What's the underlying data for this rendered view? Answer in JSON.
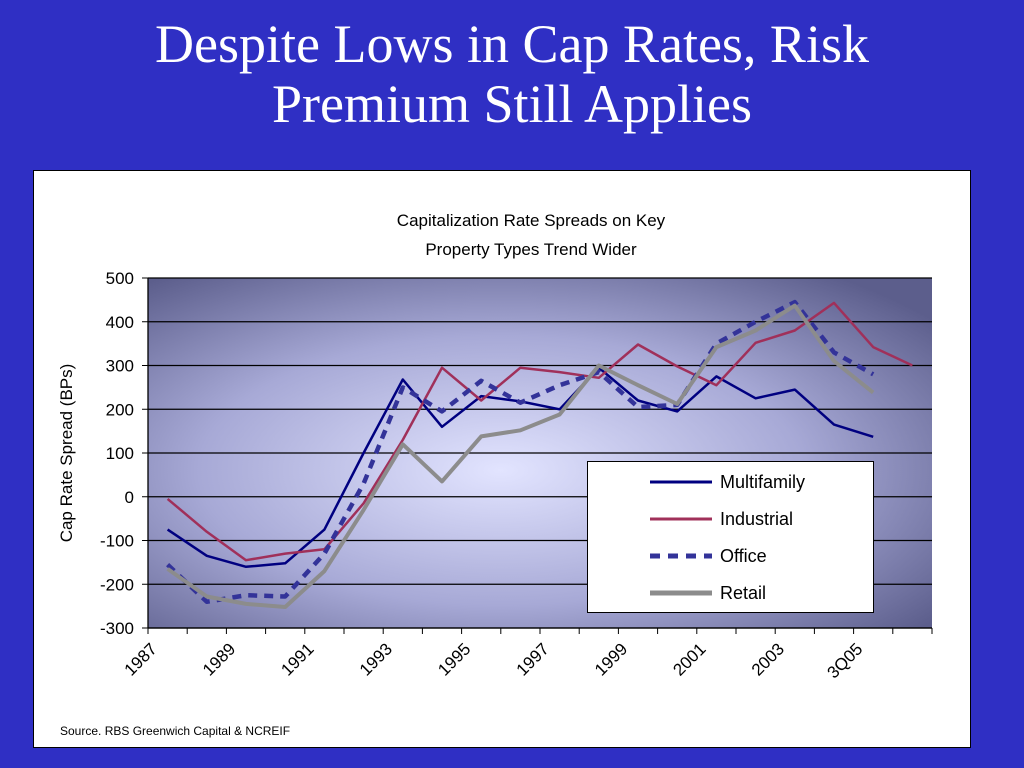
{
  "slide": {
    "title_line1": "Despite Lows in Cap Rates, Risk",
    "title_line2": "Premium Still Applies"
  },
  "source": "Source.  RBS Greenwich Capital & NCREIF",
  "chart_data": {
    "type": "line",
    "title": [
      "Capitalization Rate Spreads on Key",
      "Property Types Trend Wider"
    ],
    "ylabel": "Cap Rate Spread (BPs)",
    "xlabel": "",
    "ylim": [
      -300,
      500
    ],
    "yticks": [
      -300,
      -200,
      -100,
      0,
      100,
      200,
      300,
      400,
      500
    ],
    "x_tick_labels": [
      "1987",
      "1989",
      "1991",
      "1993",
      "1995",
      "1997",
      "1999",
      "2001",
      "2003",
      "3Q05"
    ],
    "grid": true,
    "legend_position": "lower-right",
    "series": [
      {
        "name": "Multifamily",
        "color": "#000080",
        "style": "solid",
        "values": [
          -75,
          -135,
          -160,
          -152,
          -75,
          100,
          268,
          160,
          230,
          218,
          200,
          295,
          220,
          195,
          275,
          225,
          245,
          165,
          137,
          null
        ]
      },
      {
        "name": "Industrial",
        "color": "#a0305a",
        "style": "solid",
        "values": [
          -5,
          -80,
          -145,
          -130,
          -120,
          -15,
          130,
          295,
          220,
          295,
          285,
          272,
          348,
          298,
          255,
          352,
          380,
          443,
          342,
          300
        ]
      },
      {
        "name": "Office",
        "color": "#333399",
        "style": "dashed",
        "values": [
          -155,
          -240,
          -225,
          -228,
          -130,
          30,
          250,
          195,
          265,
          215,
          255,
          285,
          205,
          210,
          350,
          400,
          445,
          330,
          280,
          null
        ]
      },
      {
        "name": "Retail",
        "color": "#8c8c8c",
        "style": "solid",
        "values": [
          -165,
          -228,
          -245,
          -252,
          -170,
          -30,
          120,
          35,
          138,
          152,
          188,
          300,
          255,
          212,
          342,
          380,
          437,
          310,
          238,
          null
        ]
      }
    ]
  }
}
